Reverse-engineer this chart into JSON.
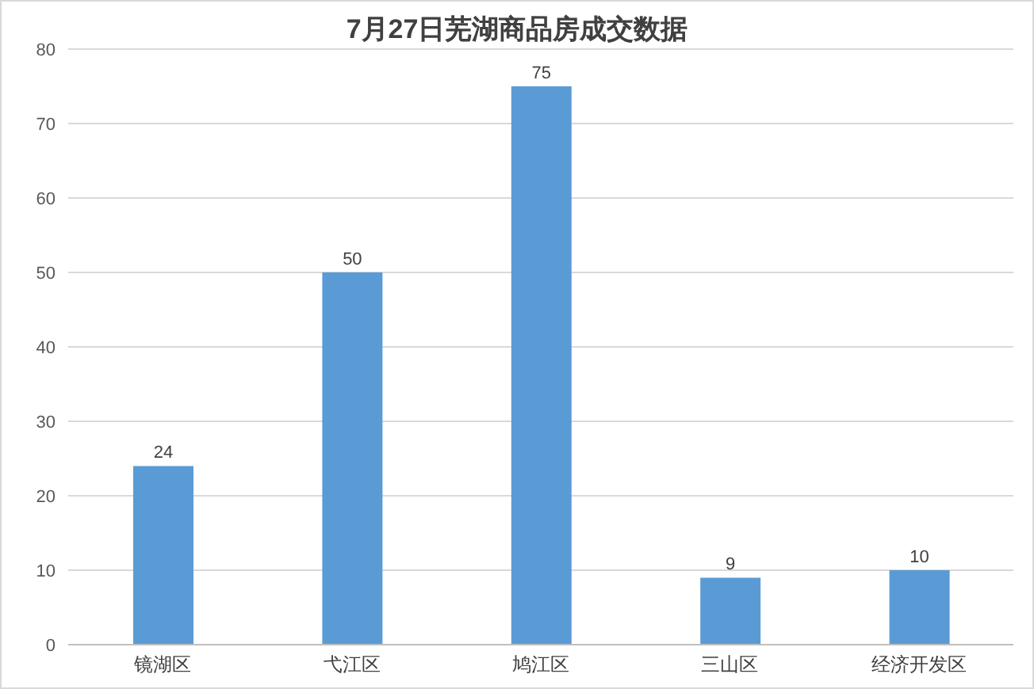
{
  "chart_data": {
    "type": "bar",
    "title": "7月27日芜湖商品房成交数据",
    "categories": [
      "镜湖区",
      "弋江区",
      "鸠江区",
      "三山区",
      "经济开发区"
    ],
    "values": [
      24,
      50,
      75,
      9,
      10
    ],
    "color": "#5b9bd5",
    "ylim": [
      0,
      80
    ],
    "yticks": [
      0,
      10,
      20,
      30,
      40,
      50,
      60,
      70,
      80
    ],
    "grid": "y",
    "data_labels": true
  }
}
